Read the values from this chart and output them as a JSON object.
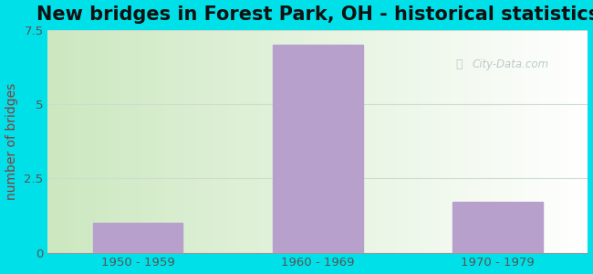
{
  "title": "New bridges in Forest Park, OH - historical statistics",
  "categories": [
    "1950 - 1959",
    "1960 - 1969",
    "1970 - 1979"
  ],
  "values": [
    1.0,
    7.0,
    1.7
  ],
  "bar_color": "#b8a0cc",
  "ylabel": "number of bridges",
  "ylabel_color": "#8b3a3a",
  "ylim": [
    0,
    7.5
  ],
  "yticks": [
    0,
    2.5,
    5,
    7.5
  ],
  "background_outer": "#00e0e8",
  "plot_bg_left": "#cce8c0",
  "plot_bg_right": "#ffffff",
  "title_fontsize": 15,
  "tick_color": "#555555",
  "watermark_text": "City-Data.com",
  "watermark_color": "#aabbbb",
  "grid_color": "#ccddcc"
}
